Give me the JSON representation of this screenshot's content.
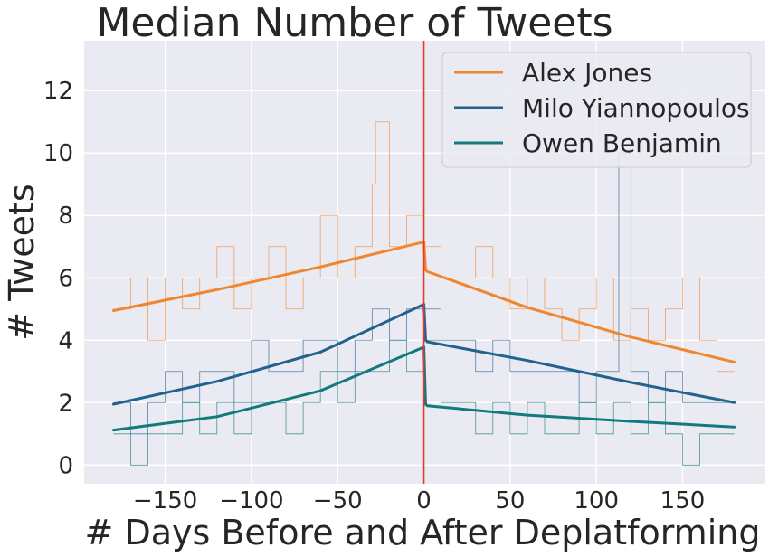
{
  "chart_data": {
    "type": "line",
    "title": "Median Number of Tweets",
    "xlabel": "# Days Before and After Deplatforming",
    "ylabel": "# Tweets",
    "xlim": [
      -197,
      198
    ],
    "ylim": [
      -0.6,
      13.6
    ],
    "x_ticks": [
      -150,
      -100,
      -50,
      0,
      50,
      100,
      150
    ],
    "x_tick_labels": [
      "−150",
      "−100",
      "−50",
      "0",
      "50",
      "100",
      "150"
    ],
    "y_ticks": [
      0,
      2,
      4,
      6,
      8,
      10,
      12
    ],
    "y_tick_labels": [
      "0",
      "2",
      "4",
      "6",
      "8",
      "10",
      "12"
    ],
    "grid": true,
    "legend_position": "top-right",
    "event_line": {
      "x": 0,
      "color": "#e8392e"
    },
    "series": [
      {
        "name": "Alex Jones",
        "color": "#f0862e",
        "fit_before": {
          "x": [
            -180,
            -120,
            -60,
            0
          ],
          "y": [
            4.95,
            5.62,
            6.35,
            7.15
          ]
        },
        "fit_after": {
          "x": [
            0,
            1,
            2,
            60,
            120,
            180
          ],
          "y": [
            7.15,
            6.25,
            6.2,
            5.05,
            4.1,
            3.3
          ]
        },
        "daily_median_sample": {
          "x": [
            -180,
            -170,
            -160,
            -150,
            -140,
            -130,
            -120,
            -110,
            -100,
            -90,
            -80,
            -70,
            -60,
            -50,
            -40,
            -30,
            -28,
            -20,
            -10,
            0,
            10,
            20,
            30,
            40,
            50,
            60,
            70,
            80,
            90,
            100,
            110,
            120,
            130,
            140,
            150,
            160,
            170,
            180
          ],
          "y": [
            5,
            6,
            4,
            6,
            5,
            6,
            7,
            5,
            6,
            7,
            5,
            6,
            8,
            6,
            7,
            9,
            11,
            7,
            8,
            7,
            6,
            6,
            7,
            6,
            5,
            6,
            5,
            4,
            5,
            6,
            4,
            5,
            4,
            5,
            6,
            4,
            3,
            3
          ]
        }
      },
      {
        "name": "Milo Yiannopoulos",
        "color": "#22628f",
        "fit_before": {
          "x": [
            -180,
            -120,
            -60,
            0
          ],
          "y": [
            1.95,
            2.68,
            3.62,
            5.15
          ]
        },
        "fit_after": {
          "x": [
            0,
            1,
            2,
            60,
            120,
            180
          ],
          "y": [
            5.15,
            4.0,
            3.95,
            3.35,
            2.65,
            2.0
          ]
        },
        "daily_median_sample": {
          "x": [
            -180,
            -170,
            -160,
            -150,
            -140,
            -130,
            -120,
            -110,
            -100,
            -90,
            -80,
            -70,
            -60,
            -50,
            -40,
            -30,
            -20,
            -10,
            0,
            10,
            20,
            30,
            40,
            50,
            60,
            70,
            80,
            90,
            100,
            110,
            113,
            120,
            130,
            140,
            150,
            160,
            170,
            180
          ],
          "y": [
            2,
            1,
            2,
            3,
            2,
            3,
            3,
            2,
            4,
            3,
            3,
            4,
            4,
            3,
            4,
            5,
            4,
            5,
            5,
            4,
            4,
            3,
            4,
            3,
            3,
            3,
            3,
            2,
            3,
            3,
            10,
            3,
            2,
            3,
            2,
            2,
            2,
            2
          ]
        }
      },
      {
        "name": "Owen Benjamin",
        "color": "#12797c",
        "fit_before": {
          "x": [
            -180,
            -120,
            -60,
            0
          ],
          "y": [
            1.12,
            1.55,
            2.38,
            3.78
          ]
        },
        "fit_after": {
          "x": [
            0,
            1,
            2,
            60,
            120,
            180
          ],
          "y": [
            3.78,
            1.95,
            1.9,
            1.6,
            1.4,
            1.22
          ]
        },
        "daily_median_sample": {
          "x": [
            -180,
            -170,
            -160,
            -150,
            -140,
            -130,
            -120,
            -110,
            -100,
            -90,
            -80,
            -70,
            -60,
            -50,
            -40,
            -30,
            -20,
            -10,
            0,
            10,
            20,
            30,
            40,
            50,
            60,
            70,
            80,
            90,
            100,
            110,
            120,
            130,
            140,
            150,
            160,
            170,
            180
          ],
          "y": [
            1,
            0,
            1,
            1,
            2,
            1,
            2,
            1,
            2,
            2,
            1,
            2,
            3,
            2,
            3,
            3,
            4,
            3,
            4,
            2,
            2,
            1,
            2,
            1,
            2,
            1,
            1,
            2,
            1,
            2,
            1,
            2,
            1,
            0,
            1,
            1,
            1
          ]
        }
      }
    ]
  }
}
